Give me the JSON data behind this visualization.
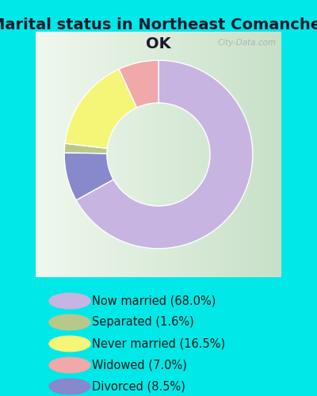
{
  "title": "Marital status in Northeast Comanche,\nOK",
  "slices": [
    68.0,
    8.5,
    1.6,
    16.5,
    7.0
  ],
  "labels": [
    "Now married (68.0%)",
    "Separated (1.6%)",
    "Never married (16.5%)",
    "Widowed (7.0%)",
    "Divorced (8.5%)"
  ],
  "legend_colors": [
    "#c8b4e0",
    "#b8c88a",
    "#f5f578",
    "#f0a8a8",
    "#8888cc"
  ],
  "slice_colors": [
    "#c8b4e0",
    "#8888cc",
    "#b8c88a",
    "#f5f578",
    "#f0a8a8"
  ],
  "background_color": "#00e8e8",
  "chart_bg_left": "#f0f8ee",
  "chart_bg_right": "#d8ecd8",
  "title_fontsize": 14,
  "legend_fontsize": 10.5,
  "watermark": "City-Data.com"
}
